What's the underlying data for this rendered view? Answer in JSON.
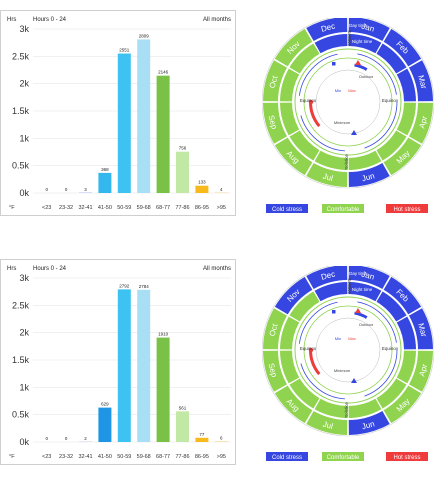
{
  "chart_data": [
    {
      "type": "bar",
      "title": "Hours 0 - 24",
      "subtitle": "All months",
      "ylabel": "Hrs",
      "xlabel": "°F",
      "ylim": [
        0,
        3000
      ],
      "yticks": [
        "0k",
        "0.5k",
        "1k",
        "1.5k",
        "2k",
        "2.5k",
        "3k"
      ],
      "categories": [
        "<23",
        "23-32",
        "32-41",
        "41-50",
        "50-59",
        "59-68",
        "68-77",
        "77-86",
        "86-95",
        ">95"
      ],
      "values": [
        0,
        0,
        3,
        368,
        2551,
        2809,
        2146,
        756,
        133,
        4
      ],
      "value_labels": [
        "0",
        "0",
        "3",
        "368",
        "2551",
        "2809",
        "2146",
        "756",
        "133",
        "4"
      ],
      "bar_colors": [
        "#2b3bd6",
        "#2b3bd6",
        "#3c4fe0",
        "#33b7ec",
        "#3dc2f2",
        "#a9dff5",
        "#79c247",
        "#c2e8a6",
        "#f7b91c",
        "#f7b91c"
      ],
      "grid": true
    },
    {
      "type": "bar",
      "title": "Hours 0 - 24",
      "subtitle": "All months",
      "ylabel": "Hrs",
      "xlabel": "°F",
      "ylim": [
        0,
        3000
      ],
      "yticks": [
        "0k",
        "0.5k",
        "1k",
        "1.5k",
        "2k",
        "2.5k",
        "3k"
      ],
      "categories": [
        "<23",
        "23-32",
        "32-41",
        "41-50",
        "50-59",
        "59-68",
        "68-77",
        "77-86",
        "86-95",
        ">95"
      ],
      "values": [
        0,
        0,
        2,
        629,
        2792,
        2784,
        1910,
        561,
        77,
        6
      ],
      "value_labels": [
        "0",
        "0",
        "2",
        "629",
        "2792",
        "2784",
        "1910",
        "561",
        "77",
        "6"
      ],
      "bar_colors": [
        "#2b3bd6",
        "#2b3bd6",
        "#3c4fe0",
        "#1f95e6",
        "#3dc2f2",
        "#a9dff5",
        "#79c247",
        "#c2e8a6",
        "#f7b91c",
        "#f7b91c"
      ],
      "grid": true
    }
  ],
  "clocks": [
    {
      "months": [
        "Jan",
        "Feb",
        "Mar",
        "Apr",
        "May",
        "Jun",
        "Jul",
        "Aug",
        "Sep",
        "Oct",
        "Nov",
        "Dec"
      ],
      "outer_ring_colors": [
        "#3547e0",
        "#3547e0",
        "#3547e0",
        "#8fd34f",
        "#8fd34f",
        "#3547e0",
        "#8fd34f",
        "#8fd34f",
        "#8fd34f",
        "#8fd34f",
        "#8fd34f",
        "#3547e0"
      ],
      "middle_ring_colors": [
        "#3547e0",
        "#3547e0",
        "#3547e0",
        "#8fd34f",
        "#8fd34f",
        "#8fd34f",
        "#8fd34f",
        "#8fd34f",
        "#8fd34f",
        "#8fd34f",
        "#8fd34f",
        "#3547e0"
      ],
      "ring_labels": [
        "Day time",
        "Night time"
      ],
      "season_labels": [
        "Solstice",
        "Equinox",
        "Solstice",
        "Equinox"
      ],
      "inner_labels": [
        "Outdoor",
        "Minimum",
        "Min",
        "Max"
      ],
      "legend": [
        "Cold stress",
        "Comfortable",
        "Hot stress"
      ],
      "legend_colors": [
        "#3547e0",
        "#8fd34f",
        "#ef3b3b"
      ]
    },
    {
      "months": [
        "Jan",
        "Feb",
        "Mar",
        "Apr",
        "May",
        "Jun",
        "Jul",
        "Aug",
        "Sep",
        "Oct",
        "Nov",
        "Dec"
      ],
      "outer_ring_colors": [
        "#3547e0",
        "#3547e0",
        "#3547e0",
        "#8fd34f",
        "#8fd34f",
        "#3547e0",
        "#8fd34f",
        "#8fd34f",
        "#8fd34f",
        "#8fd34f",
        "#3547e0",
        "#3547e0"
      ],
      "middle_ring_colors": [
        "#3547e0",
        "#3547e0",
        "#3547e0",
        "#8fd34f",
        "#8fd34f",
        "#8fd34f",
        "#8fd34f",
        "#8fd34f",
        "#8fd34f",
        "#8fd34f",
        "#8fd34f",
        "#3547e0"
      ],
      "ring_labels": [
        "Day time",
        "Night time"
      ],
      "season_labels": [
        "Solstice",
        "Equinox",
        "Solstice",
        "Equinox"
      ],
      "inner_labels": [
        "Outdoor",
        "Minimum",
        "Min",
        "Max"
      ],
      "legend": [
        "Cold stress",
        "Comfortable",
        "Hot stress"
      ],
      "legend_colors": [
        "#3547e0",
        "#8fd34f",
        "#ef3b3b"
      ]
    }
  ]
}
